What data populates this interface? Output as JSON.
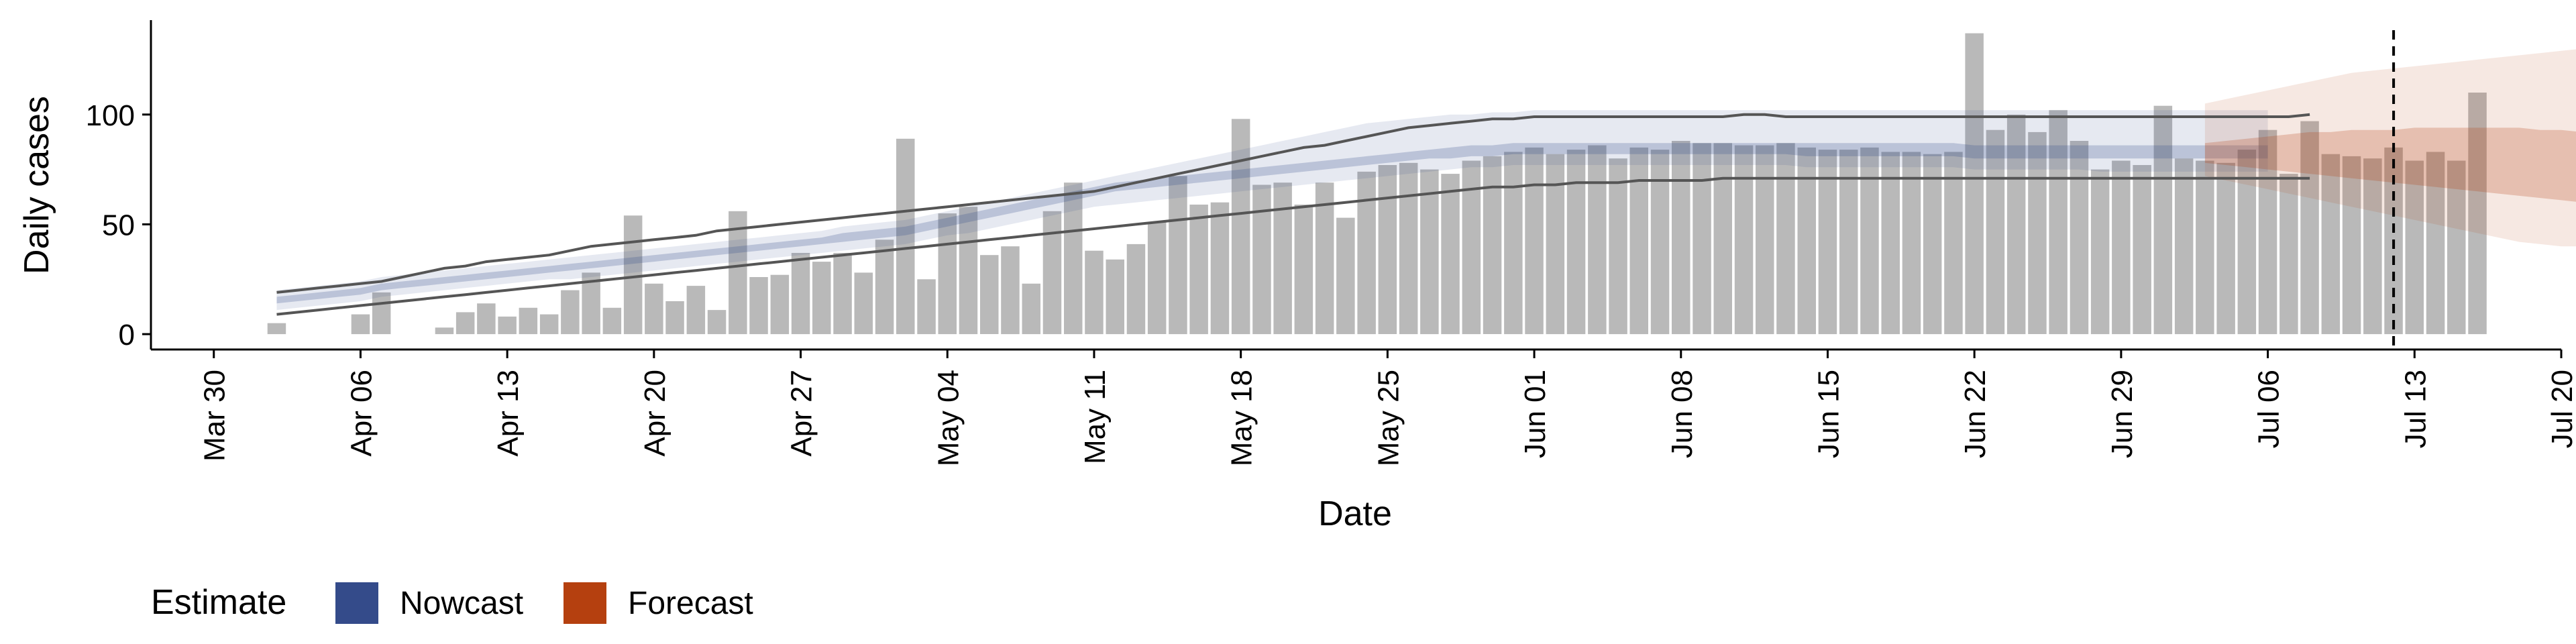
{
  "chart_data": {
    "type": "bar",
    "xlabel": "Date",
    "ylabel": "Daily cases",
    "x_ticks": [
      "Mar 30",
      "Apr 06",
      "Apr 13",
      "Apr 20",
      "Apr 27",
      "May 04",
      "May 11",
      "May 18",
      "May 25",
      "Jun 01",
      "Jun 08",
      "Jun 15",
      "Jun 22",
      "Jun 29",
      "Jul 06",
      "Jul 13",
      "Jul 20"
    ],
    "y_ticks": [
      0,
      50,
      100
    ],
    "ylim": [
      -7,
      143
    ],
    "xlim": [
      "2020-03-27",
      "2020-07-20"
    ],
    "grid": false,
    "legend": {
      "title": "Estimate",
      "position": "bottom-left",
      "items": [
        {
          "label": "Nowcast",
          "color": "#344b8a"
        },
        {
          "label": "Forecast",
          "color": "#b5400f"
        }
      ]
    },
    "forecast_date": "2020-07-12",
    "bars": {
      "start_date": "2020-04-02",
      "color": "#b9b9b9",
      "values": [
        5,
        0,
        0,
        0,
        9,
        19,
        0,
        0,
        3,
        10,
        14,
        8,
        12,
        9,
        20,
        28,
        12,
        54,
        23,
        15,
        22,
        11,
        56,
        26,
        27,
        37,
        33,
        37,
        28,
        43,
        89,
        25,
        55,
        58,
        36,
        40,
        23,
        56,
        69,
        38,
        34,
        41,
        51,
        72,
        59,
        60,
        98,
        68,
        69,
        59,
        69,
        53,
        74,
        77,
        78,
        75,
        73,
        79,
        81,
        83,
        85,
        82,
        84,
        86,
        80,
        85,
        84,
        88,
        87,
        87,
        86,
        86,
        87,
        85,
        84,
        84,
        85,
        83,
        83,
        82,
        83,
        137,
        93,
        100,
        92,
        102,
        88,
        75,
        79,
        77,
        104,
        80,
        79,
        78,
        84,
        93,
        73,
        97,
        82,
        81,
        80,
        85,
        79,
        83,
        79,
        110
      ]
    },
    "series": [
      {
        "name": "Nowcast",
        "start_date": "2020-04-02",
        "color": "#344b8a",
        "lower90": [
          11,
          12,
          13,
          14,
          15,
          17,
          18,
          19,
          20,
          21,
          22,
          23,
          24,
          25,
          25,
          26,
          27,
          28,
          29,
          30,
          31,
          32,
          33,
          34,
          35,
          36,
          37,
          38,
          39,
          40,
          41,
          43,
          45,
          46,
          48,
          50,
          52,
          54,
          56,
          58,
          59,
          60,
          61,
          62,
          63,
          64,
          65,
          66,
          67,
          68,
          69,
          70,
          71,
          72,
          73,
          74,
          75,
          76,
          76,
          77,
          77,
          77,
          77,
          77,
          77,
          77,
          77,
          77,
          77,
          77,
          77,
          77,
          77,
          76,
          76,
          76,
          76,
          76,
          76,
          76,
          76,
          75,
          75,
          75,
          75,
          75,
          75,
          74,
          74,
          74,
          74,
          74,
          74,
          74,
          74,
          74
        ],
        "lower50": [
          14,
          15,
          16,
          17,
          18,
          20,
          21,
          22,
          23,
          24,
          25,
          26,
          27,
          28,
          29,
          30,
          31,
          32,
          33,
          34,
          35,
          36,
          37,
          38,
          39,
          40,
          41,
          42,
          43,
          44,
          45,
          47,
          49,
          51,
          53,
          55,
          57,
          59,
          61,
          63,
          65,
          66,
          67,
          68,
          69,
          70,
          71,
          72,
          73,
          74,
          75,
          76,
          77,
          78,
          79,
          80,
          80,
          81,
          81,
          82,
          82,
          82,
          82,
          82,
          82,
          82,
          82,
          82,
          82,
          82,
          82,
          82,
          82,
          81,
          81,
          81,
          81,
          81,
          81,
          81,
          81,
          80,
          80,
          80,
          80,
          80,
          80,
          80,
          80,
          80,
          80,
          80,
          80,
          80,
          80,
          80
        ],
        "upper50": [
          17,
          18,
          19,
          20,
          21,
          23,
          24,
          25,
          26,
          27,
          28,
          29,
          30,
          31,
          32,
          33,
          34,
          35,
          36,
          37,
          38,
          39,
          40,
          41,
          42,
          43,
          44,
          46,
          47,
          48,
          49,
          51,
          53,
          55,
          57,
          59,
          61,
          63,
          65,
          67,
          69,
          70,
          71,
          72,
          73,
          74,
          75,
          76,
          77,
          78,
          79,
          80,
          81,
          82,
          83,
          84,
          85,
          86,
          86,
          87,
          87,
          87,
          87,
          87,
          87,
          87,
          87,
          87,
          87,
          87,
          87,
          87,
          87,
          87,
          87,
          87,
          87,
          87,
          87,
          87,
          87,
          86,
          86,
          86,
          86,
          86,
          86,
          86,
          86,
          86,
          86,
          86,
          86,
          86,
          86,
          86
        ],
        "upper90": [
          20,
          21,
          22,
          23,
          24,
          26,
          27,
          28,
          29,
          30,
          31,
          32,
          33,
          34,
          35,
          36,
          37,
          38,
          39,
          40,
          41,
          42,
          43,
          44,
          45,
          46,
          47,
          49,
          50,
          51,
          52,
          54,
          56,
          58,
          60,
          62,
          64,
          66,
          68,
          70,
          72,
          74,
          76,
          78,
          80,
          82,
          84,
          86,
          88,
          90,
          92,
          94,
          96,
          97,
          98,
          99,
          100,
          100,
          101,
          101,
          102,
          102,
          102,
          102,
          102,
          102,
          102,
          102,
          102,
          102,
          102,
          102,
          102,
          102,
          102,
          102,
          102,
          102,
          102,
          102,
          102,
          102,
          102,
          102,
          102,
          102,
          102,
          102,
          102,
          102,
          102,
          102,
          102,
          102,
          102,
          102
        ]
      },
      {
        "name": "Forecast",
        "start_date": "2020-07-03",
        "color": "#b5400f",
        "lower90": [
          72,
          70,
          68,
          66,
          64,
          62,
          60,
          58,
          56,
          54,
          52,
          50,
          48,
          46,
          44,
          42,
          41,
          40,
          40,
          40,
          40,
          40,
          40,
          40,
          40
        ],
        "lower50": [
          78,
          77,
          76,
          75,
          74,
          73,
          72,
          71,
          70,
          69,
          68,
          67,
          66,
          65,
          64,
          63,
          62,
          61,
          60,
          60,
          60,
          60,
          60,
          60,
          60
        ],
        "upper50": [
          87,
          88,
          89,
          90,
          91,
          92,
          92,
          93,
          93,
          93,
          94,
          94,
          94,
          94,
          94,
          94,
          93,
          93,
          92,
          92,
          92,
          91,
          91,
          91,
          91
        ],
        "upper90": [
          105,
          107,
          109,
          111,
          113,
          115,
          117,
          119,
          120,
          121,
          122,
          123,
          124,
          125,
          126,
          127,
          128,
          129,
          130,
          130,
          130,
          130,
          130,
          130,
          130
        ]
      }
    ],
    "reference_lines": [
      {
        "start_date": "2020-04-02",
        "color": "#555555",
        "values": [
          19,
          20,
          21,
          22,
          23,
          24,
          26,
          28,
          30,
          31,
          33,
          34,
          35,
          36,
          38,
          40,
          41,
          42,
          43,
          44,
          45,
          47,
          48,
          49,
          50,
          51,
          52,
          53,
          54,
          55,
          56,
          57,
          58,
          59,
          60,
          61,
          62,
          63,
          64,
          65,
          67,
          69,
          71,
          73,
          75,
          77,
          79,
          81,
          83,
          85,
          86,
          88,
          90,
          92,
          94,
          95,
          96,
          97,
          98,
          98,
          99,
          99,
          99,
          99,
          99,
          99,
          99,
          99,
          99,
          99,
          100,
          100,
          99,
          99,
          99,
          99,
          99,
          99,
          99,
          99,
          99,
          99,
          99,
          99,
          99,
          99,
          99,
          99,
          99,
          99,
          99,
          99,
          99,
          99,
          99,
          99,
          99,
          100
        ]
      },
      {
        "start_date": "2020-04-02",
        "color": "#555555",
        "values": [
          9,
          10,
          11,
          12,
          13,
          14,
          15,
          16,
          17,
          18,
          19,
          20,
          21,
          22,
          23,
          24,
          25,
          26,
          27,
          28,
          29,
          30,
          31,
          32,
          33,
          34,
          35,
          36,
          37,
          38,
          39,
          40,
          41,
          42,
          43,
          44,
          45,
          46,
          47,
          48,
          49,
          50,
          51,
          52,
          53,
          54,
          55,
          56,
          57,
          58,
          59,
          60,
          61,
          62,
          63,
          64,
          65,
          66,
          67,
          67,
          68,
          68,
          69,
          69,
          69,
          70,
          70,
          70,
          70,
          71,
          71,
          71,
          71,
          71,
          71,
          71,
          71,
          71,
          71,
          71,
          71,
          71,
          71,
          71,
          71,
          71,
          71,
          71,
          71,
          71,
          71,
          71,
          71,
          71,
          71,
          71,
          71,
          71
        ]
      }
    ]
  }
}
